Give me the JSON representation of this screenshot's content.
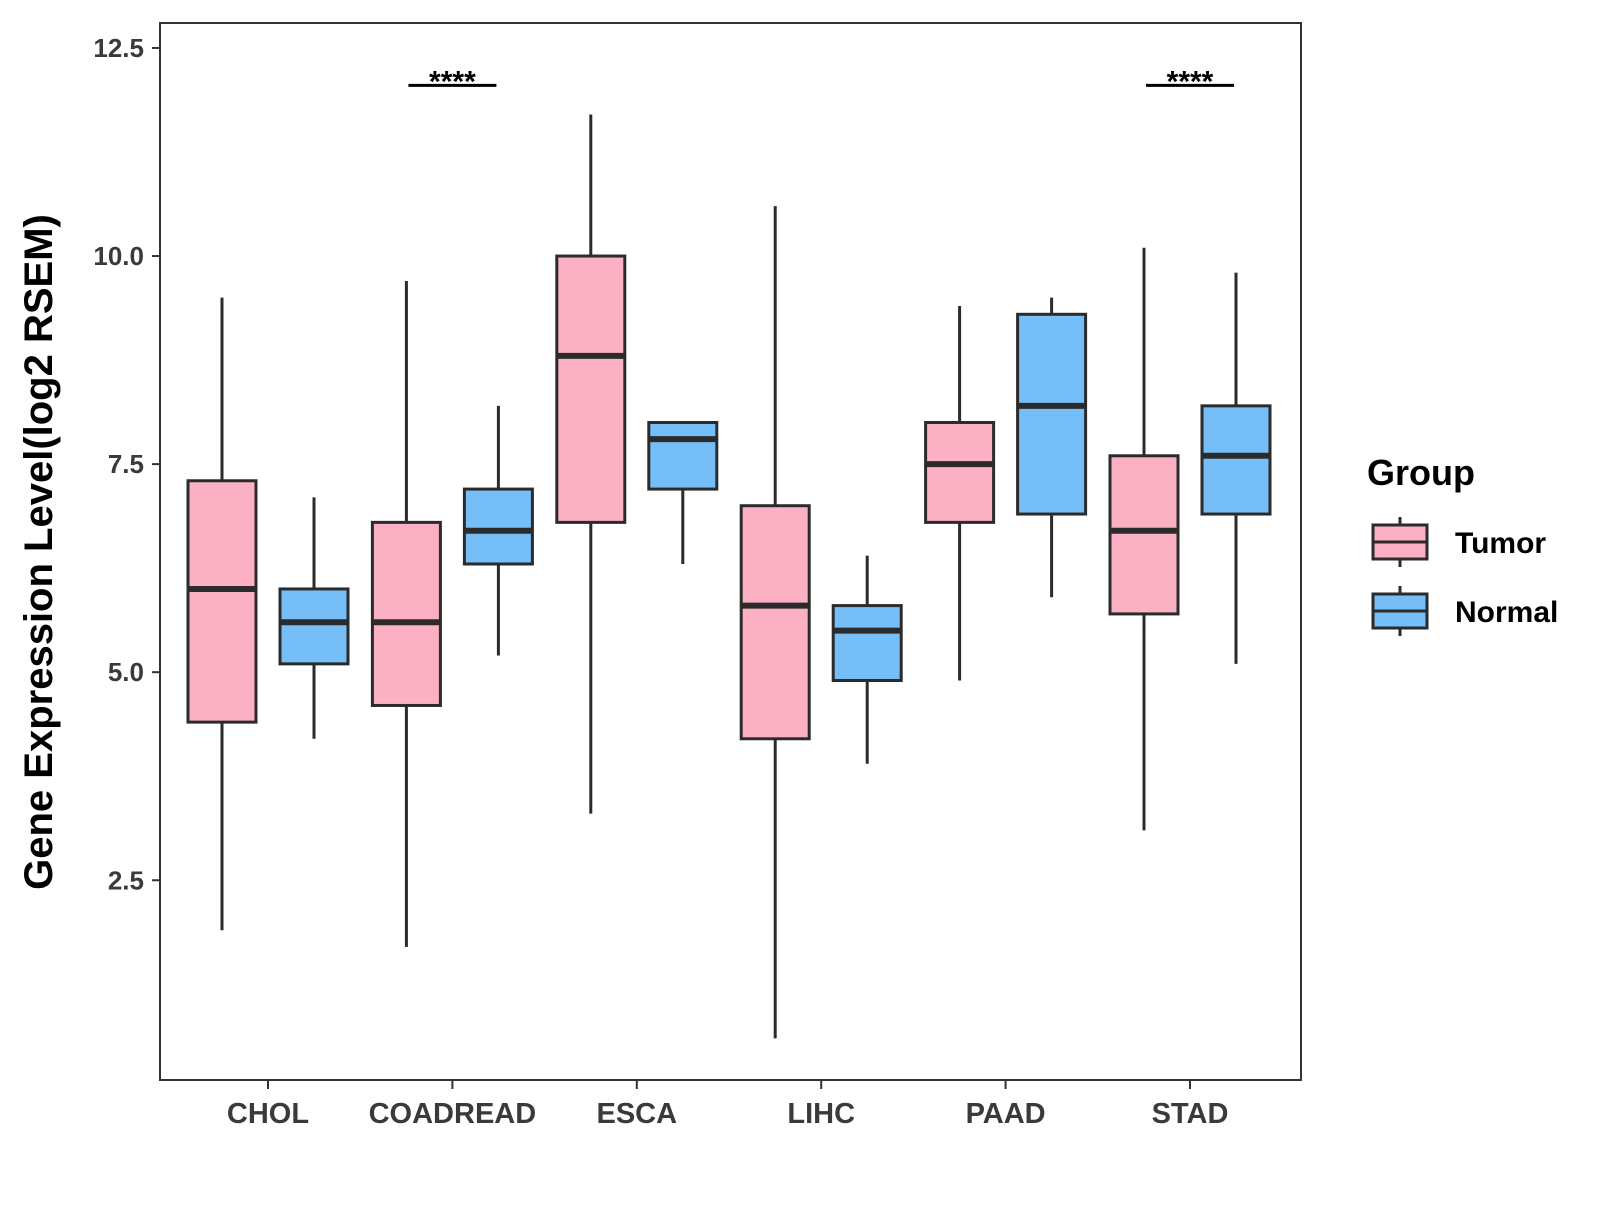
{
  "chart_data": {
    "type": "boxplot",
    "title": "",
    "xlabel": "",
    "ylabel": "Gene Expression Level(log2 RSEM)",
    "ylim": [
      0.1,
      12.8
    ],
    "yticks": [
      2.5,
      5.0,
      7.5,
      10.0,
      12.5
    ],
    "ytick_labels": [
      "2.5",
      "5.0",
      "7.5",
      "10.0",
      "12.5"
    ],
    "grid": false,
    "categories": [
      "CHOL",
      "COADREAD",
      "ESCA",
      "LIHC",
      "PAAD",
      "STAD"
    ],
    "legend": {
      "title": "Group",
      "position": "right",
      "entries": [
        {
          "name": "Tumor",
          "color": "#FBB1C3"
        },
        {
          "name": "Normal",
          "color": "#75BEF7"
        }
      ]
    },
    "series": [
      {
        "name": "Tumor",
        "color": "#FBB1C3",
        "boxes": [
          {
            "category": "CHOL",
            "min": 1.9,
            "q1": 4.4,
            "median": 6.0,
            "q3": 7.3,
            "max": 9.5
          },
          {
            "category": "COADREAD",
            "min": 1.7,
            "q1": 4.6,
            "median": 5.6,
            "q3": 6.8,
            "max": 9.7
          },
          {
            "category": "ESCA",
            "min": 3.3,
            "q1": 6.8,
            "median": 8.8,
            "q3": 10.0,
            "max": 11.7
          },
          {
            "category": "LIHC",
            "min": 0.6,
            "q1": 4.2,
            "median": 5.8,
            "q3": 7.0,
            "max": 10.6
          },
          {
            "category": "PAAD",
            "min": 4.9,
            "q1": 6.8,
            "median": 7.5,
            "q3": 8.0,
            "max": 9.4
          },
          {
            "category": "STAD",
            "min": 3.1,
            "q1": 5.7,
            "median": 6.7,
            "q3": 7.6,
            "max": 10.1
          }
        ]
      },
      {
        "name": "Normal",
        "color": "#75BEF7",
        "boxes": [
          {
            "category": "CHOL",
            "min": 4.2,
            "q1": 5.1,
            "median": 5.6,
            "q3": 6.0,
            "max": 7.1
          },
          {
            "category": "COADREAD",
            "min": 5.2,
            "q1": 6.3,
            "median": 6.7,
            "q3": 7.2,
            "max": 8.2
          },
          {
            "category": "ESCA",
            "min": 6.3,
            "q1": 7.2,
            "median": 7.8,
            "q3": 8.0,
            "max": 8.0
          },
          {
            "category": "LIHC",
            "min": 3.9,
            "q1": 4.9,
            "median": 5.5,
            "q3": 5.8,
            "max": 6.4
          },
          {
            "category": "PAAD",
            "min": 5.9,
            "q1": 6.9,
            "median": 8.2,
            "q3": 9.3,
            "max": 9.5
          },
          {
            "category": "STAD",
            "min": 5.1,
            "q1": 6.9,
            "median": 7.6,
            "q3": 8.2,
            "max": 9.8
          }
        ]
      }
    ],
    "annotations": [
      {
        "category": "COADREAD",
        "text": "****",
        "y": 12.05
      },
      {
        "category": "STAD",
        "text": "****",
        "y": 12.05
      }
    ]
  }
}
